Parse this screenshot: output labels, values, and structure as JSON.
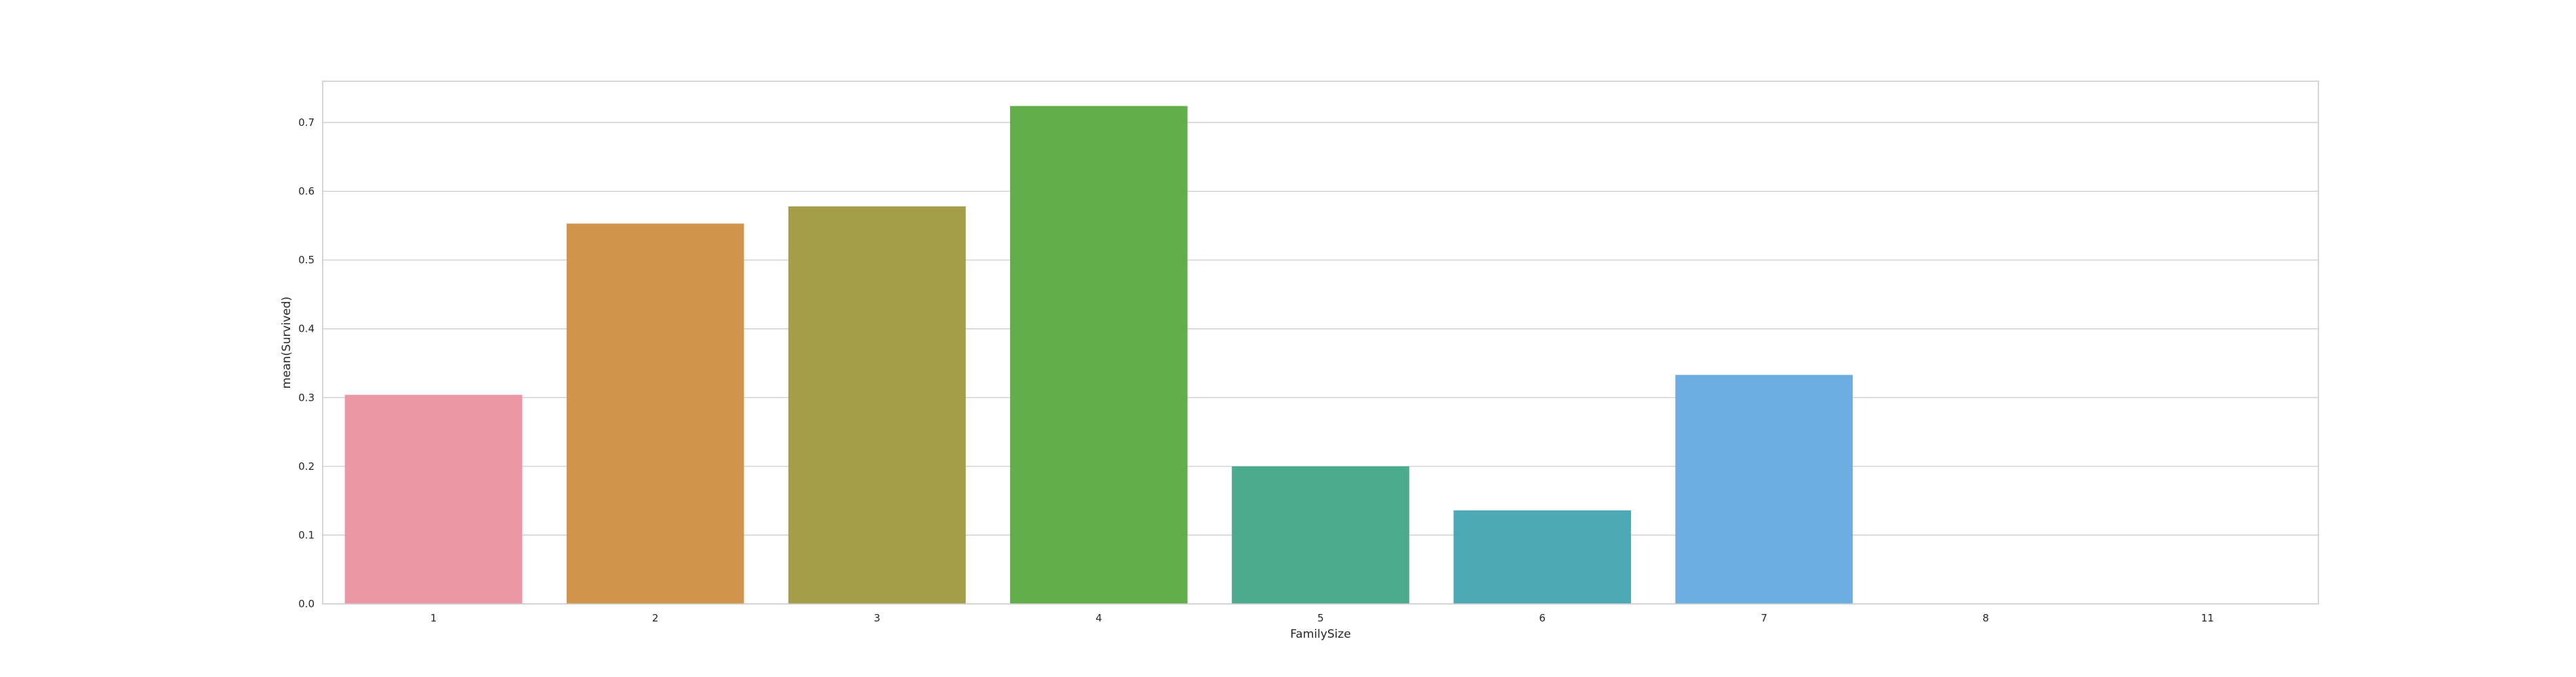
{
  "chart_data": {
    "type": "bar",
    "categories": [
      "1",
      "2",
      "3",
      "4",
      "5",
      "6",
      "7",
      "8",
      "11"
    ],
    "values": [
      0.304,
      0.553,
      0.578,
      0.724,
      0.2,
      0.136,
      0.333,
      0.0,
      0.0
    ],
    "colors": [
      "#ea96a3",
      "#d0954b",
      "#a39e47",
      "#62ae4a",
      "#4aab8f",
      "#4daab5",
      "#6daee2",
      "#a9a3eb",
      "#e18fd3"
    ],
    "title": "",
    "xlabel": "FamilySize",
    "ylabel": "mean(Survived)",
    "ylim": [
      0,
      0.76
    ],
    "yticks": [
      "0.0",
      "0.1",
      "0.2",
      "0.3",
      "0.4",
      "0.5",
      "0.6",
      "0.7"
    ],
    "grid": true,
    "style": "whitegrid"
  }
}
